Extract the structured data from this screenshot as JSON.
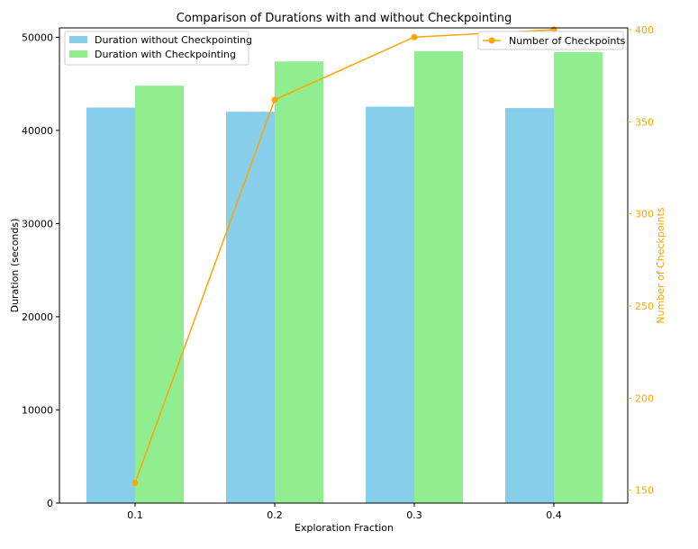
{
  "chart_data": {
    "type": "bar",
    "title": "Comparison of Durations with and without Checkpointing",
    "xlabel": "Exploration Fraction",
    "ylabel": "Duration (seconds)",
    "y2label": "Number of Checkpoints",
    "categories": [
      "0.1",
      "0.2",
      "0.3",
      "0.4"
    ],
    "ylim": [
      0,
      51000
    ],
    "yticks": [
      0,
      10000,
      20000,
      30000,
      40000,
      50000
    ],
    "y2lim": [
      143,
      401
    ],
    "y2ticks": [
      150,
      200,
      250,
      300,
      350,
      400
    ],
    "series": [
      {
        "name": "Duration without Checkpointing",
        "type": "bar",
        "axis": "left",
        "color": "#87ceeb",
        "values": [
          42450,
          42000,
          42550,
          42400
        ]
      },
      {
        "name": "Duration with Checkpointing",
        "type": "bar",
        "axis": "left",
        "color": "#90ee90",
        "values": [
          44800,
          47400,
          48500,
          48400
        ]
      },
      {
        "name": "Number of Checkpoints",
        "type": "line",
        "axis": "right",
        "color": "#ffa500",
        "values": [
          154,
          362,
          396,
          400
        ]
      }
    ],
    "legend_left_placement": "top-left",
    "legend_right_placement": "top-right",
    "grid": false
  }
}
